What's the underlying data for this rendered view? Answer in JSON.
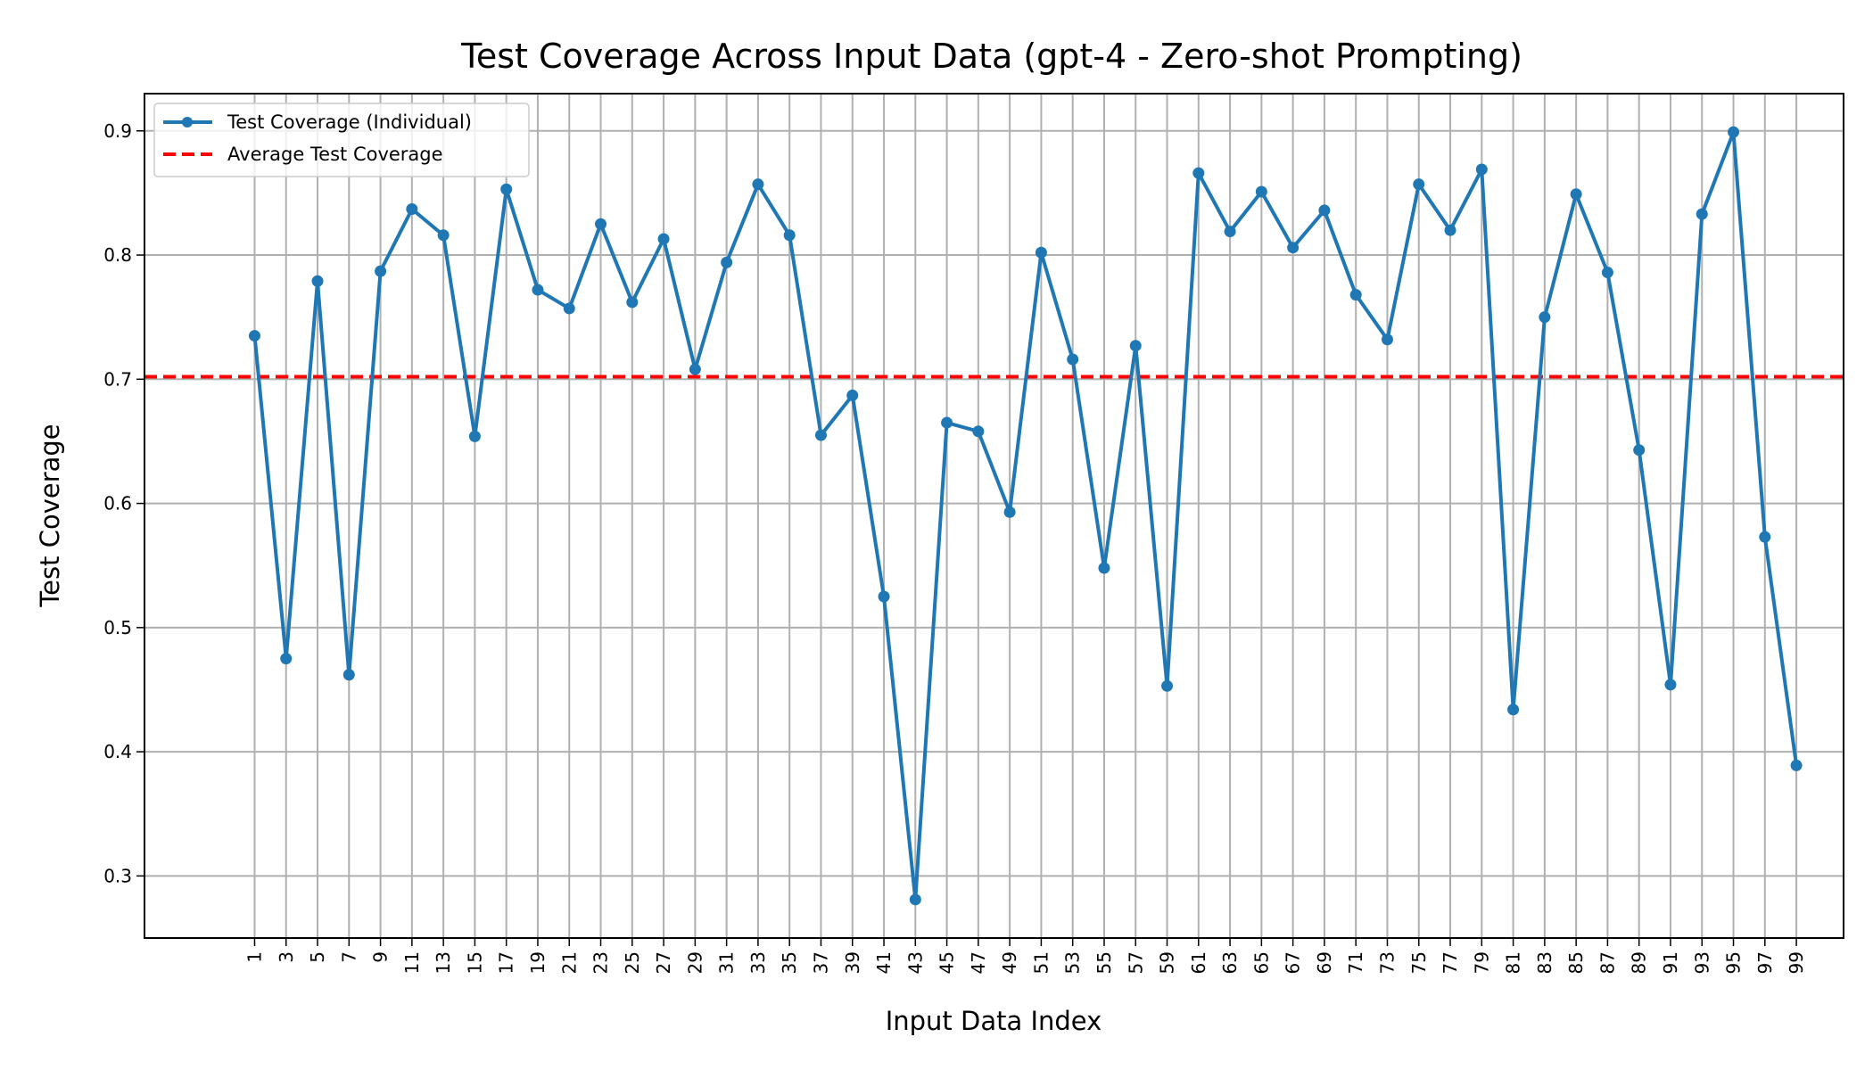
{
  "chart_data": {
    "type": "line",
    "title": "Test Coverage Across Input Data (gpt-4 - Zero-shot Prompting)",
    "xlabel": "Input Data Index",
    "ylabel": "Test Coverage",
    "x": [
      1,
      3,
      5,
      7,
      9,
      11,
      13,
      15,
      17,
      19,
      21,
      23,
      25,
      27,
      29,
      31,
      33,
      35,
      37,
      39,
      41,
      43,
      45,
      47,
      49,
      51,
      53,
      55,
      57,
      59,
      61,
      63,
      65,
      67,
      69,
      71,
      73,
      75,
      77,
      79,
      81,
      83,
      85,
      87,
      89,
      91,
      93,
      95,
      97,
      99
    ],
    "xticks": [
      "1",
      "3",
      "5",
      "7",
      "9",
      "11",
      "13",
      "15",
      "17",
      "19",
      "21",
      "23",
      "25",
      "27",
      "29",
      "31",
      "33",
      "35",
      "37",
      "39",
      "41",
      "43",
      "45",
      "47",
      "49",
      "51",
      "53",
      "55",
      "57",
      "59",
      "61",
      "63",
      "65",
      "67",
      "69",
      "71",
      "73",
      "75",
      "77",
      "79",
      "81",
      "83",
      "85",
      "87",
      "89",
      "91",
      "93",
      "95",
      "97",
      "99"
    ],
    "xlim": [
      -6,
      102
    ],
    "ylim": [
      0.25,
      0.93
    ],
    "yticks": [
      0.3,
      0.4,
      0.5,
      0.6,
      0.7,
      0.8,
      0.9
    ],
    "ytick_labels": [
      "0.3",
      "0.4",
      "0.5",
      "0.6",
      "0.7",
      "0.8",
      "0.9"
    ],
    "grid": true,
    "legend_position": "top-left",
    "series": [
      {
        "name": "Test Coverage (Individual)",
        "color": "#1f77b4",
        "style": "solid-with-markers",
        "values": [
          0.735,
          0.475,
          0.779,
          0.462,
          0.787,
          0.837,
          0.816,
          0.654,
          0.853,
          0.772,
          0.757,
          0.825,
          0.762,
          0.813,
          0.708,
          0.794,
          0.857,
          0.816,
          0.655,
          0.687,
          0.525,
          0.281,
          0.665,
          0.658,
          0.593,
          0.802,
          0.716,
          0.548,
          0.727,
          0.453,
          0.866,
          0.819,
          0.851,
          0.806,
          0.836,
          0.768,
          0.732,
          0.857,
          0.82,
          0.869,
          0.434,
          0.75,
          0.849,
          0.786,
          0.643,
          0.454,
          0.833,
          0.899,
          0.573,
          0.389
        ]
      },
      {
        "name": "Average Test Coverage",
        "color": "#ff0000",
        "style": "dashed",
        "value": 0.702
      }
    ]
  }
}
